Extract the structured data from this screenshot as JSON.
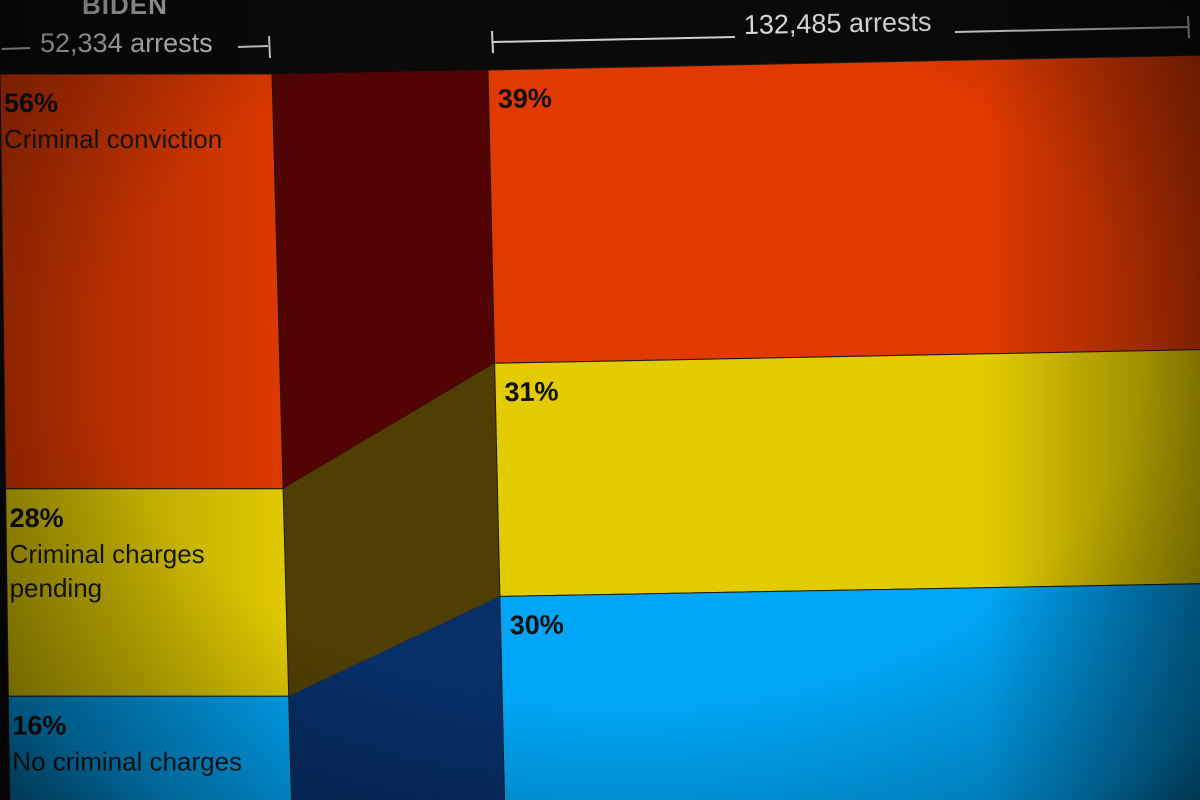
{
  "chart_data": {
    "type": "bar",
    "stacked": true,
    "orientation": "vertical",
    "columns": [
      {
        "label": "BIDEN",
        "total_text": "52,334 arrests",
        "total": 52334
      },
      {
        "label": "",
        "total_text": "132,485 arrests",
        "total": 132485
      }
    ],
    "series": [
      {
        "name": "Criminal conviction",
        "label_lines": [
          "Criminal conviction"
        ],
        "values": [
          56,
          39
        ],
        "value_labels": [
          "56%",
          "39%"
        ],
        "color": "#e03a00",
        "link_color": "#520404"
      },
      {
        "name": "Criminal charges pending",
        "label_lines": [
          "Criminal charges",
          "pending"
        ],
        "values": [
          28,
          31
        ],
        "value_labels": [
          "28%",
          "31%"
        ],
        "color": "#e2cc00",
        "link_color": "#4f3f03"
      },
      {
        "name": "No criminal charges",
        "label_lines": [
          "No criminal charges"
        ],
        "values": [
          16,
          30
        ],
        "value_labels": [
          "16%",
          "30%"
        ],
        "color": "#00a6f5",
        "link_color": "#072f68"
      }
    ],
    "unit": "%",
    "legend": "none",
    "grid": false
  }
}
